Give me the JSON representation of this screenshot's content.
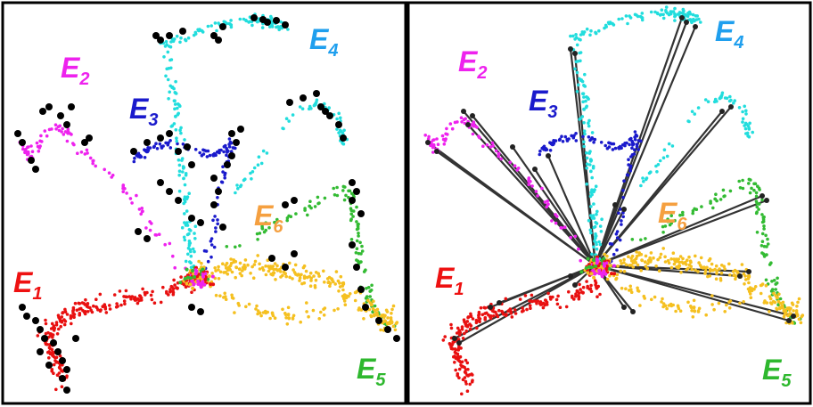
{
  "panels": [
    {
      "id": "left",
      "labels": [
        {
          "key": "E1",
          "letter": "E",
          "sub": "1",
          "color": "#ee1111"
        },
        {
          "key": "E2",
          "letter": "E",
          "sub": "2",
          "color": "#ee22ee"
        },
        {
          "key": "E3",
          "letter": "E",
          "sub": "3",
          "color": "#1a1acc"
        },
        {
          "key": "E4",
          "letter": "E",
          "sub": "4",
          "color": "#1f9fee"
        },
        {
          "key": "E5",
          "letter": "E",
          "sub": "5",
          "color": "#2eb82e"
        },
        {
          "key": "E6",
          "letter": "E",
          "sub": "6",
          "color": "#f5a040"
        }
      ]
    },
    {
      "id": "right",
      "labels": [
        {
          "key": "E1",
          "letter": "E",
          "sub": "1",
          "color": "#ee1111"
        },
        {
          "key": "E2",
          "letter": "E",
          "sub": "2",
          "color": "#ee22ee"
        },
        {
          "key": "E3",
          "letter": "E",
          "sub": "3",
          "color": "#1a1acc"
        },
        {
          "key": "E4",
          "letter": "E",
          "sub": "4",
          "color": "#1f9fee"
        },
        {
          "key": "E5",
          "letter": "E",
          "sub": "5",
          "color": "#2eb82e"
        },
        {
          "key": "E6",
          "letter": "E",
          "sub": "6",
          "color": "#f5a040"
        }
      ]
    }
  ],
  "point_colors": {
    "red": "#e81010",
    "magenta": "#ee22ee",
    "blue": "#1a1acc",
    "cyan": "#22dddd",
    "green": "#33bb33",
    "yellow": "#f5c020",
    "black": "#000000"
  }
}
